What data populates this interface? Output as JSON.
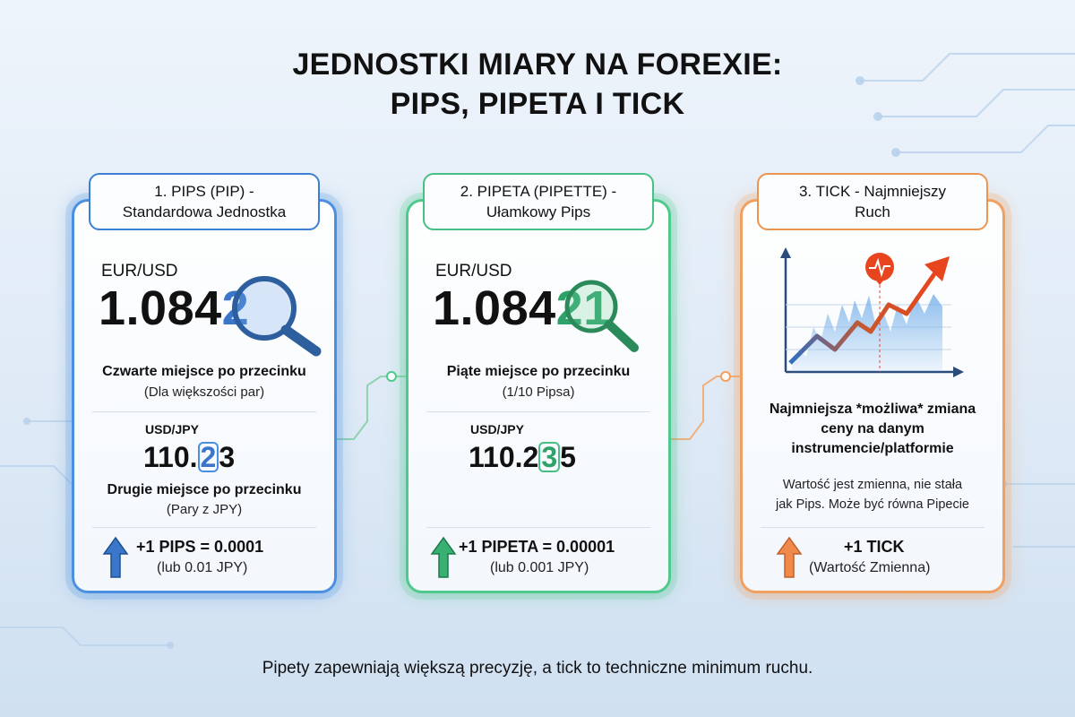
{
  "title": {
    "line1": "JEDNOSTKI MIARY NA FOREXIE:",
    "line2": "PIPS, PIPETA I TICK"
  },
  "cards": [
    {
      "header_line1": "1. PIPS (PIP) -",
      "header_line2": "Standardowa Jednostka",
      "accent": "#4a8fe0",
      "pair_main": "EUR/USD",
      "price_main_prefix": "1.084",
      "price_main_highlight": "2",
      "price_main_extra": "",
      "desc_main": "Czwarte miejsce po przecinku",
      "desc_sub": "(Dla większości par)",
      "pair_second": "USD/JPY",
      "price_second_prefix": "110.",
      "price_second_highlight": "2",
      "price_second_suffix": "3",
      "desc2_main": "Drugie miejsce po przecinku",
      "desc2_sub": "(Pary z JPY)",
      "formula": "+1 PIPS = 0.0001",
      "formula_sub": "(lub 0.01 JPY)",
      "icon": "magnifier-icon"
    },
    {
      "header_line1": "2. PIPETA (PIPETTE) -",
      "header_line2": "Ułamkowy Pips",
      "accent": "#4fc98c",
      "pair_main": "EUR/USD",
      "price_main_prefix": "1.084",
      "price_main_highlight": "2",
      "price_main_extra": "1",
      "desc_main": "Piąte miejsce po przecinku",
      "desc_sub": "(1/10 Pipsa)",
      "pair_second": "USD/JPY",
      "price_second_prefix": "110.2",
      "price_second_highlight": "3",
      "price_second_suffix": "5",
      "formula": "+1 PIPETA = 0.00001",
      "formula_sub": "(lub 0.001 JPY)",
      "icon": "magnifier-icon"
    },
    {
      "header_line1": "3. TICK - Najmniejszy",
      "header_line2": "Ruch",
      "accent": "#f0a060",
      "desc_main_line1": "Najmniejsza *możliwa* zmiana",
      "desc_main_line2": "ceny na danym",
      "desc_main_line3": "instrumencie/platformie",
      "note_line1": "Wartość jest zmienna, nie stała",
      "note_line2": "jak Pips. Może być równa Pipecie",
      "formula": "+1 TICK",
      "formula_sub": "(Wartość Zmienna)",
      "icon": "chart-trend-icon"
    }
  ],
  "footer": "Pipety zapewniają większą precyzję, a tick to techniczne minimum ruchu."
}
